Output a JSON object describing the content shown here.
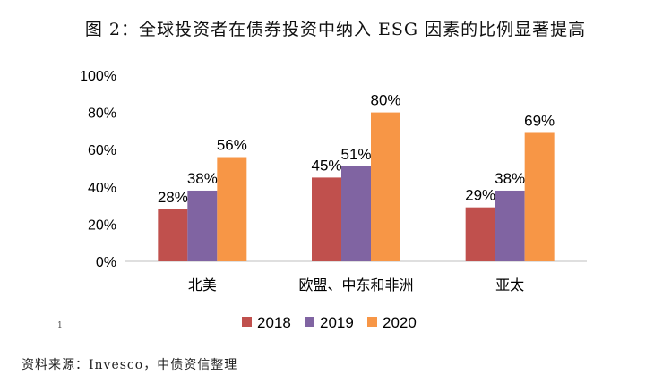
{
  "title": "图 2：全球投资者在债券投资中纳入 ESG 因素的比例显著提高",
  "source": "资料来源：Invesco，中债资信整理",
  "footnote_mark": "1",
  "chart_data": {
    "type": "bar",
    "categories": [
      "北美",
      "欧盟、中东和非洲",
      "亚太"
    ],
    "series": [
      {
        "name": "2018",
        "color": "#c0504d",
        "values": [
          28,
          45,
          29
        ]
      },
      {
        "name": "2019",
        "color": "#8064a2",
        "values": [
          38,
          51,
          38
        ]
      },
      {
        "name": "2020",
        "color": "#f79646",
        "values": [
          56,
          80,
          69
        ]
      }
    ],
    "ylim": [
      0,
      100
    ],
    "yticks": [
      "0%",
      "20%",
      "40%",
      "60%",
      "80%",
      "100%"
    ],
    "ytick_values": [
      0,
      20,
      40,
      60,
      80,
      100
    ],
    "value_format": "%",
    "grid": false,
    "legend": "bottom"
  }
}
